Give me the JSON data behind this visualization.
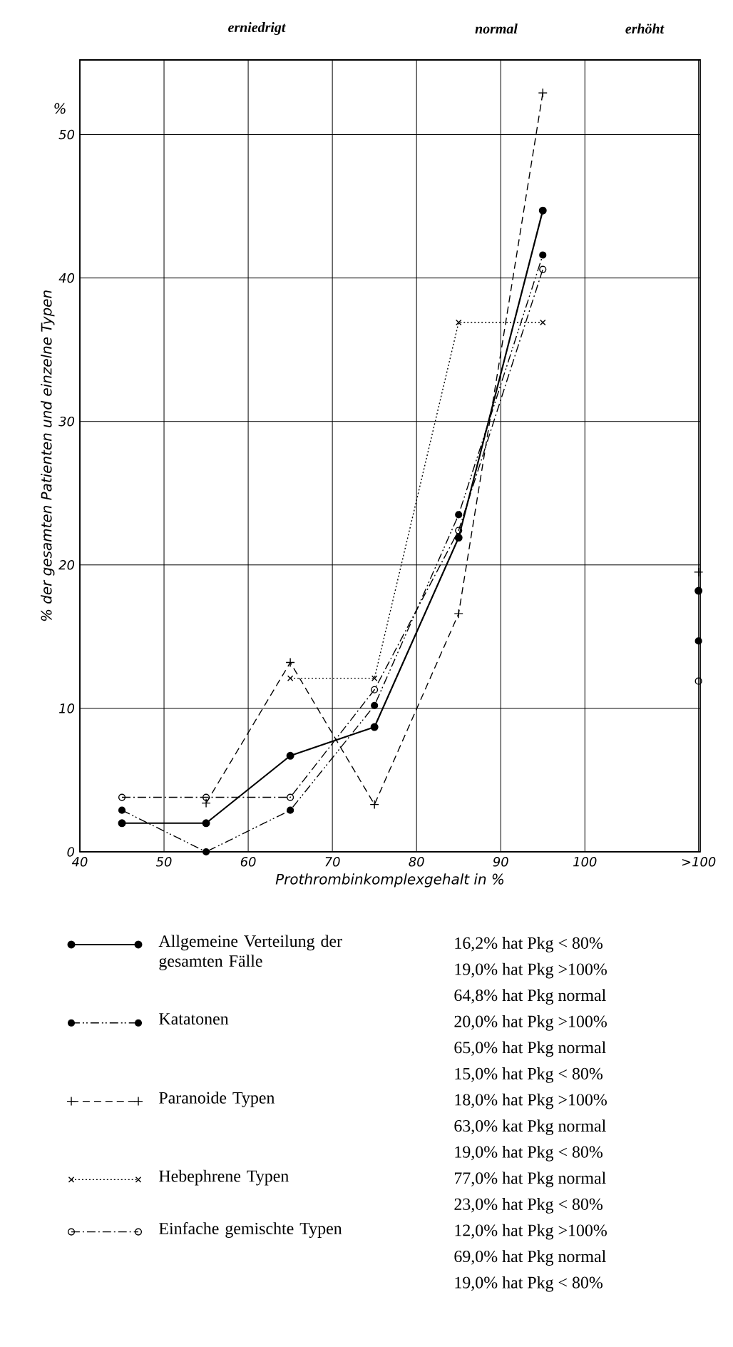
{
  "chart_data": {
    "type": "line",
    "xlabel": "Prothrombinkomplexgehalt in %",
    "ylabel": "% der gesamten Patienten und einzelne Typen",
    "x": [
      45,
      55,
      65,
      75,
      85,
      95,
      104,
      113.5
    ],
    "series": [
      {
        "name": "Allgemeine Verteilung der gesamten Fälle",
        "color": "#000000",
        "line_style": "solid",
        "marker": "circle",
        "values": [
          2.0,
          2.0,
          6.7,
          8.7,
          21.9,
          44.7,
          null,
          18.2
        ]
      },
      {
        "name": "Katatonen",
        "color": "#000000",
        "line_style": "dashdotdotted",
        "marker": "circle",
        "values": [
          2.9,
          0,
          2.9,
          10.2,
          23.5,
          41.6,
          null,
          14.7
        ]
      },
      {
        "name": "Paranoide Typen",
        "color": "#000000",
        "line_style": "dashed",
        "marker": "plus",
        "values": [
          null,
          3.4,
          13.2,
          3.3,
          16.6,
          52.9,
          null,
          19.5
        ]
      },
      {
        "name": "Hebephrene Typen",
        "color": "#000000",
        "line_style": "dotted",
        "marker": "cross",
        "values": [
          null,
          null,
          12.1,
          12.1,
          36.9,
          36.9,
          null,
          null
        ]
      },
      {
        "name": "Einfache gemischte Typen",
        "color": "#000000",
        "line_style": "dashdotted",
        "marker": "circle-open",
        "values": [
          3.8,
          3.8,
          3.8,
          11.3,
          22.4,
          40.6,
          null,
          11.9
        ]
      }
    ],
    "xlim": [
      40,
      113.7
    ],
    "ylim": [
      0,
      55.2
    ],
    "xticks": [
      40,
      50,
      60,
      70,
      80,
      90,
      100,
      {
        "value": 113.5,
        "label": ">100"
      }
    ],
    "yticks": [
      0,
      10,
      20,
      30,
      40,
      50
    ],
    "grid": true,
    "legend": "bottom",
    "annotations": [
      "erniedrigt",
      "normal",
      "erhöht",
      "%",
      "16,2% hat Pkg < 80%",
      "19,0% hat Pkg >100%",
      "64,8% hat Pkg normal",
      "20,0% hat Pkg >100%",
      "65,0% hat Pkg normal",
      "15,0% hat Pkg < 80%",
      "18,0% hat Pkg >100%",
      "63,0% kat Pkg normal",
      "19,0% hat Pkg < 80%",
      "77,0% hat Pkg normal",
      "23,0% hat Pkg < 80%",
      "12,0% hat Pkg >100%",
      "69,0% hat Pkg normal",
      "19,0% hat Pkg < 80%"
    ]
  }
}
